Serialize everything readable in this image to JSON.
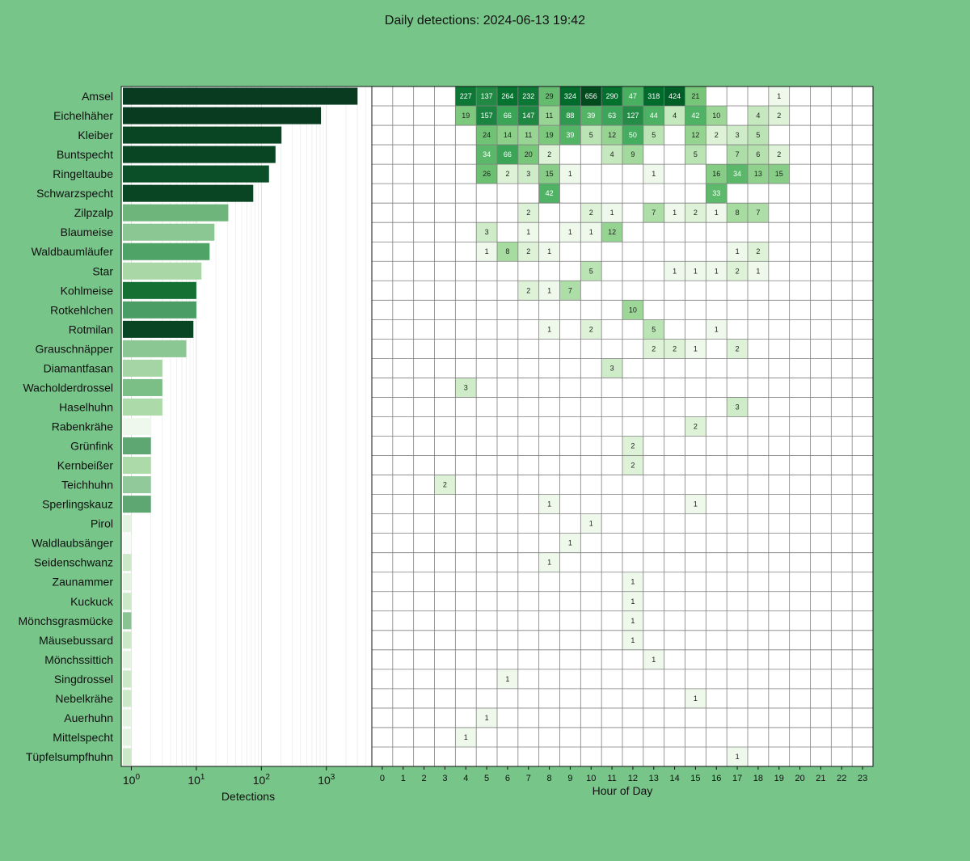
{
  "title": "Daily detections: 2024-06-13 19:42",
  "chart_data": [
    {
      "type": "bar",
      "orientation": "horizontal",
      "xscale": "log",
      "xlabel": "Detections",
      "xlim": [
        0.7,
        5000
      ],
      "xticks": [
        {
          "base": "10",
          "exp": "0",
          "value": 1
        },
        {
          "base": "10",
          "exp": "1",
          "value": 10
        },
        {
          "base": "10",
          "exp": "2",
          "value": 100
        },
        {
          "base": "10",
          "exp": "3",
          "value": 1000
        }
      ],
      "categories": [
        "Amsel",
        "Eichelhäher",
        "Kleiber",
        "Buntspecht",
        "Ringeltaube",
        "Schwarzspecht",
        "Zilpzalp",
        "Blaumeise",
        "Waldbaumläufer",
        "Star",
        "Kohlmeise",
        "Rotkehlchen",
        "Rotmilan",
        "Grauschnäpper",
        "Diamantfasan",
        "Wacholderdrossel",
        "Haselhuhn",
        "Rabenkrähe",
        "Grünfink",
        "Kernbeißer",
        "Teichhuhn",
        "Sperlingskauz",
        "Pirol",
        "Waldlaubsänger",
        "Seidenschwanz",
        "Zaunammer",
        "Kuckuck",
        "Mönchsgrasmücke",
        "Mäusebussard",
        "Mönchssittich",
        "Singdrossel",
        "Nebelkrähe",
        "Auerhuhn",
        "Mittelspecht",
        "Tüpfelsumpfhuhn"
      ],
      "values": [
        3014,
        826,
        204,
        165,
        131,
        75,
        31,
        19,
        16,
        12,
        10,
        10,
        9,
        7,
        3,
        3,
        3,
        2,
        2,
        2,
        2,
        2,
        1,
        1,
        1,
        1,
        1,
        1,
        1,
        1,
        1,
        1,
        1,
        1,
        1
      ],
      "bar_colors": [
        "#083b20",
        "#083b20",
        "#0a4523",
        "#0a4523",
        "#0b4f28",
        "#0a4523",
        "#6db57b",
        "#8bc792",
        "#4fa366",
        "#a9d7a6",
        "#157034",
        "#4a9d64",
        "#0a4523",
        "#8bc792",
        "#a5d5a4",
        "#7bbf86",
        "#addaa9",
        "#eef8ec",
        "#5ea672",
        "#addaa9",
        "#91c99a",
        "#5ea672",
        "#e3f3df",
        "#f6fbf5",
        "#cbe9c6",
        "#e3f3df",
        "#cbe9c6",
        "#88c491",
        "#cbe9c6",
        "#e3f3df",
        "#cbe9c6",
        "#cbe9c6",
        "#e3f3df",
        "#e3f3df",
        "#cbe9c6"
      ],
      "grid": true
    },
    {
      "type": "heatmap",
      "xlabel": "Hour of Day",
      "x": [
        0,
        1,
        2,
        3,
        4,
        5,
        6,
        7,
        8,
        9,
        10,
        11,
        12,
        13,
        14,
        15,
        16,
        17,
        18,
        19,
        20,
        21,
        22,
        23
      ],
      "rows": [
        {
          "label": "Amsel",
          "hours": {
            "4": 227,
            "5": 137,
            "6": 264,
            "7": 232,
            "8": 29,
            "9": 324,
            "10": 656,
            "11": 290,
            "12": 47,
            "13": 318,
            "14": 424,
            "15": 21,
            "19": 1
          }
        },
        {
          "label": "Eichelhäher",
          "hours": {
            "4": 19,
            "5": 157,
            "6": 66,
            "7": 147,
            "8": 11,
            "9": 88,
            "10": 39,
            "11": 63,
            "12": 127,
            "13": 44,
            "14": 4,
            "15": 42,
            "16": 10,
            "18": 4,
            "19": 2
          }
        },
        {
          "label": "Kleiber",
          "hours": {
            "5": 24,
            "6": 14,
            "7": 11,
            "8": 19,
            "9": 39,
            "10": 5,
            "11": 12,
            "12": 50,
            "13": 5,
            "15": 12,
            "16": 2,
            "17": 3,
            "18": 5
          }
        },
        {
          "label": "Buntspecht",
          "hours": {
            "5": 34,
            "6": 66,
            "7": 20,
            "8": 2,
            "11": 4,
            "12": 9,
            "15": 5,
            "17": 7,
            "18": 6,
            "19": 2
          }
        },
        {
          "label": "Ringeltaube",
          "hours": {
            "5": 26,
            "6": 2,
            "7": 3,
            "8": 15,
            "9": 1,
            "13": 1,
            "16": 16,
            "17": 34,
            "18": 13,
            "19": 15
          }
        },
        {
          "label": "Schwarzspecht",
          "hours": {
            "8": 42,
            "16": 33
          }
        },
        {
          "label": "Zilpzalp",
          "hours": {
            "7": 2,
            "10": 2,
            "11": 1,
            "13": 7,
            "14": 1,
            "15": 2,
            "16": 1,
            "17": 8,
            "18": 7
          }
        },
        {
          "label": "Blaumeise",
          "hours": {
            "5": 3,
            "7": 1,
            "9": 1,
            "10": 1,
            "11": 12
          }
        },
        {
          "label": "Waldbaumläufer",
          "hours": {
            "5": 1,
            "6": 8,
            "7": 2,
            "8": 1,
            "17": 1,
            "18": 2
          }
        },
        {
          "label": "Star",
          "hours": {
            "10": 5,
            "14": 1,
            "15": 1,
            "16": 1,
            "17": 2,
            "18": 1
          }
        },
        {
          "label": "Kohlmeise",
          "hours": {
            "7": 2,
            "8": 1,
            "9": 7
          }
        },
        {
          "label": "Rotkehlchen",
          "hours": {
            "12": 10
          }
        },
        {
          "label": "Rotmilan",
          "hours": {
            "8": 1,
            "10": 2,
            "13": 5,
            "16": 1
          }
        },
        {
          "label": "Grauschnäpper",
          "hours": {
            "13": 2,
            "14": 2,
            "15": 1,
            "17": 2
          }
        },
        {
          "label": "Diamantfasan",
          "hours": {
            "11": 3
          }
        },
        {
          "label": "Wacholderdrossel",
          "hours": {
            "4": 3
          }
        },
        {
          "label": "Haselhuhn",
          "hours": {
            "17": 3
          }
        },
        {
          "label": "Rabenkrähe",
          "hours": {
            "15": 2
          }
        },
        {
          "label": "Grünfink",
          "hours": {
            "12": 2
          }
        },
        {
          "label": "Kernbeißer",
          "hours": {
            "12": 2
          }
        },
        {
          "label": "Teichhuhn",
          "hours": {
            "3": 2
          }
        },
        {
          "label": "Sperlingskauz",
          "hours": {
            "8": 1,
            "15": 1
          }
        },
        {
          "label": "Pirol",
          "hours": {
            "10": 1
          }
        },
        {
          "label": "Waldlaubsänger",
          "hours": {
            "9": 1
          }
        },
        {
          "label": "Seidenschwanz",
          "hours": {
            "8": 1
          }
        },
        {
          "label": "Zaunammer",
          "hours": {
            "12": 1
          }
        },
        {
          "label": "Kuckuck",
          "hours": {
            "12": 1
          }
        },
        {
          "label": "Mönchsgrasmücke",
          "hours": {
            "12": 1
          }
        },
        {
          "label": "Mäusebussard",
          "hours": {
            "12": 1
          }
        },
        {
          "label": "Mönchssittich",
          "hours": {
            "13": 1
          }
        },
        {
          "label": "Singdrossel",
          "hours": {
            "6": 1
          }
        },
        {
          "label": "Nebelkrähe",
          "hours": {
            "15": 1
          }
        },
        {
          "label": "Auerhuhn",
          "hours": {
            "5": 1
          }
        },
        {
          "label": "Mittelspecht",
          "hours": {
            "4": 1
          }
        },
        {
          "label": "Tüpfelsumpfhuhn",
          "hours": {
            "17": 1
          }
        }
      ],
      "colormap": "Greens",
      "grid": true
    }
  ],
  "colors": {
    "background": "#77c589",
    "plot_bg": "#ffffff",
    "grid_line": "#7f7f7f"
  }
}
